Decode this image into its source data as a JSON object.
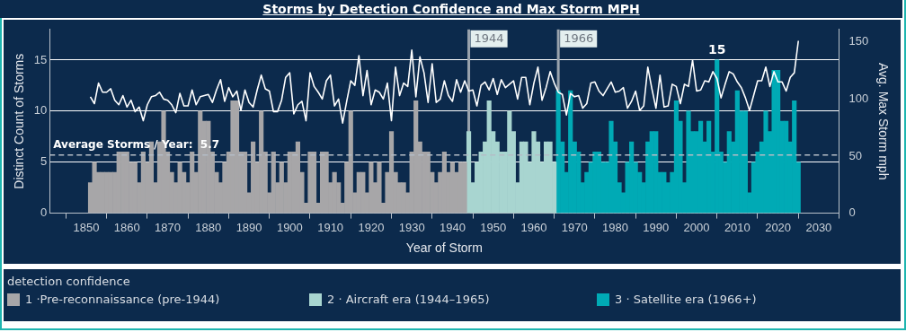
{
  "chart_data": {
    "type": "bar",
    "title": "Storms by Detection Confidence and Max Storm MPH",
    "xlabel": "Year of Storm",
    "ylabel": "Distinct Count of Storms",
    "y2label": "Avg. Max Storm mph",
    "legend_title": "detection confidence",
    "legend": "bottom",
    "grid": "y",
    "xlim": [
      1841,
      2035
    ],
    "xticks": [
      1850,
      1860,
      1870,
      1880,
      1890,
      1900,
      1910,
      1920,
      1930,
      1940,
      1950,
      1960,
      1970,
      1980,
      1990,
      2000,
      2010,
      2020,
      2030
    ],
    "ylim": [
      0,
      18
    ],
    "yticks": [
      0,
      5,
      10,
      15
    ],
    "y2lim": [
      0,
      161
    ],
    "y2ticks": [
      0,
      50,
      100,
      150
    ],
    "series": [
      {
        "name": "1 ·Pre-reconnaissance (pre-1944)",
        "color": "#a7a6a8",
        "x": [
          1851,
          1852,
          1853,
          1854,
          1855,
          1856,
          1857,
          1858,
          1859,
          1860,
          1861,
          1862,
          1863,
          1864,
          1865,
          1866,
          1867,
          1868,
          1869,
          1870,
          1871,
          1872,
          1873,
          1874,
          1875,
          1876,
          1877,
          1878,
          1879,
          1880,
          1881,
          1882,
          1883,
          1884,
          1885,
          1886,
          1887,
          1888,
          1889,
          1890,
          1891,
          1892,
          1893,
          1894,
          1895,
          1896,
          1897,
          1898,
          1899,
          1900,
          1901,
          1902,
          1903,
          1904,
          1905,
          1906,
          1907,
          1908,
          1909,
          1910,
          1911,
          1912,
          1913,
          1914,
          1915,
          1916,
          1917,
          1918,
          1919,
          1920,
          1921,
          1922,
          1923,
          1924,
          1925,
          1926,
          1927,
          1928,
          1929,
          1930,
          1931,
          1932,
          1933,
          1934,
          1935,
          1936,
          1937,
          1938,
          1939,
          1940,
          1941,
          1942,
          1943
        ],
        "values": [
          3,
          5,
          4,
          4,
          4,
          4,
          4,
          6,
          6,
          6,
          5,
          5,
          3,
          6,
          5,
          7,
          3,
          7,
          10,
          6,
          4,
          3,
          5,
          4,
          3,
          6,
          4,
          10,
          9,
          9,
          6,
          4,
          3,
          5,
          6,
          11,
          11,
          6,
          6,
          2,
          7,
          5,
          10,
          6,
          2,
          6,
          3,
          5,
          3,
          6,
          6,
          7,
          4,
          1,
          6,
          6,
          1,
          6,
          6,
          3,
          4,
          3,
          1,
          5,
          10,
          2,
          4,
          4,
          2,
          5,
          3,
          5,
          1,
          4,
          8,
          4,
          3,
          3,
          2,
          6,
          11,
          7,
          6,
          6,
          4,
          3,
          4,
          6,
          4,
          5,
          4,
          5,
          5
        ]
      },
      {
        "name": "2 · Aircraft era (1944–1965)",
        "color": "#a8d5d0",
        "x": [
          1944,
          1945,
          1946,
          1947,
          1948,
          1949,
          1950,
          1951,
          1952,
          1953,
          1954,
          1955,
          1956,
          1957,
          1958,
          1959,
          1960,
          1961,
          1962,
          1963,
          1964,
          1965
        ],
        "values": [
          8,
          3,
          5,
          6,
          7,
          11,
          8,
          7,
          6,
          6,
          10,
          8,
          3,
          7,
          7,
          5,
          8,
          7,
          5,
          7,
          7,
          5
        ]
      },
      {
        "name": "3 · Satellite era (1966+)",
        "color": "#00aab5",
        "x": [
          1966,
          1967,
          1968,
          1969,
          1970,
          1971,
          1972,
          1973,
          1974,
          1975,
          1976,
          1977,
          1978,
          1979,
          1980,
          1981,
          1982,
          1983,
          1984,
          1985,
          1986,
          1987,
          1988,
          1989,
          1990,
          1991,
          1992,
          1993,
          1994,
          1995,
          1996,
          1997,
          1998,
          1999,
          2000,
          2001,
          2002,
          2003,
          2004,
          2005,
          2006,
          2007,
          2008,
          2009,
          2010,
          2011,
          2012,
          2013,
          2014,
          2015,
          2016,
          2017,
          2018,
          2019,
          2020,
          2021,
          2022,
          2023,
          2024,
          2025
        ],
        "values": [
          12,
          7,
          4,
          12,
          7,
          6,
          3,
          4,
          5,
          6,
          6,
          5,
          5,
          9,
          7,
          3,
          2,
          5,
          7,
          5,
          4,
          3,
          7,
          8,
          8,
          4,
          4,
          3,
          4,
          11,
          9,
          3,
          10,
          8,
          8,
          9,
          7,
          9,
          6,
          15,
          6,
          5,
          8,
          7,
          12,
          10,
          10,
          2,
          5,
          6,
          7,
          10,
          8,
          14,
          14,
          9,
          9,
          7,
          11,
          5
        ],
        "value_labels": [
          null,
          null,
          null,
          null,
          null,
          null,
          null,
          null,
          null,
          null,
          null,
          null,
          null,
          null,
          null,
          null,
          null,
          null,
          null,
          null,
          null,
          null,
          null,
          null,
          null,
          null,
          null,
          null,
          null,
          null,
          null,
          null,
          null,
          null,
          null,
          null,
          null,
          null,
          null,
          "15",
          null,
          null,
          null,
          null,
          null,
          null,
          null,
          null,
          null,
          null,
          null,
          null,
          null,
          null,
          null,
          null,
          null,
          null,
          null,
          null
        ]
      },
      {
        "type": "line",
        "axis": "y2",
        "color": "#ffffff",
        "marker": "none",
        "line_style": "solid",
        "x": [
          1851,
          1852,
          1853,
          1854,
          1855,
          1856,
          1857,
          1858,
          1859,
          1860,
          1861,
          1862,
          1863,
          1864,
          1865,
          1866,
          1867,
          1868,
          1869,
          1870,
          1871,
          1872,
          1873,
          1874,
          1875,
          1876,
          1877,
          1878,
          1879,
          1880,
          1881,
          1882,
          1883,
          1884,
          1885,
          1886,
          1887,
          1888,
          1889,
          1890,
          1891,
          1892,
          1893,
          1894,
          1895,
          1896,
          1897,
          1898,
          1899,
          1900,
          1901,
          1902,
          1903,
          1904,
          1905,
          1906,
          1907,
          1908,
          1909,
          1910,
          1911,
          1912,
          1913,
          1914,
          1915,
          1916,
          1917,
          1918,
          1919,
          1920,
          1921,
          1922,
          1923,
          1924,
          1925,
          1926,
          1927,
          1928,
          1929,
          1930,
          1931,
          1932,
          1933,
          1934,
          1935,
          1936,
          1937,
          1938,
          1939,
          1940,
          1941,
          1942,
          1943,
          1944,
          1945,
          1946,
          1947,
          1948,
          1949,
          1950,
          1951,
          1952,
          1953,
          1954,
          1955,
          1956,
          1957,
          1958,
          1959,
          1960,
          1961,
          1962,
          1963,
          1964,
          1965,
          1966,
          1967,
          1968,
          1969,
          1970,
          1971,
          1972,
          1973,
          1974,
          1975,
          1976,
          1977,
          1978,
          1979,
          1980,
          1981,
          1982,
          1983,
          1984,
          1985,
          1986,
          1987,
          1988,
          1989,
          1990,
          1991,
          1992,
          1993,
          1994,
          1995,
          1996,
          1997,
          1998,
          1999,
          2000,
          2001,
          2002,
          2003,
          2004,
          2005,
          2006,
          2007,
          2008,
          2009,
          2010,
          2011,
          2012,
          2013,
          2014,
          2015,
          2016,
          2017,
          2018,
          2019,
          2020,
          2021,
          2022,
          2023,
          2024,
          2025
        ],
        "values": [
          102,
          96,
          114,
          106,
          106,
          109,
          99,
          95,
          103,
          93,
          99,
          89,
          93,
          81,
          95,
          102,
          103,
          106,
          100,
          99,
          95,
          88,
          105,
          94,
          94,
          108,
          95,
          102,
          103,
          104,
          97,
          108,
          117,
          98,
          110,
          102,
          107,
          90,
          108,
          97,
          93,
          108,
          121,
          109,
          107,
          89,
          89,
          99,
          119,
          123,
          87,
          95,
          98,
          81,
          123,
          111,
          106,
          100,
          116,
          121,
          94,
          100,
          79,
          98,
          116,
          112,
          138,
          103,
          125,
          95,
          108,
          106,
          100,
          114,
          81,
          128,
          103,
          114,
          111,
          143,
          102,
          137,
          123,
          97,
          131,
          97,
          100,
          116,
          103,
          98,
          117,
          106,
          116,
          107,
          108,
          94,
          112,
          115,
          108,
          118,
          104,
          117,
          110,
          113,
          116,
          100,
          119,
          119,
          95,
          114,
          128,
          99,
          110,
          124,
          114,
          106,
          104,
          86,
          105,
          102,
          103,
          92,
          96,
          114,
          115,
          107,
          103,
          109,
          115,
          106,
          107,
          110,
          92,
          98,
          107,
          90,
          94,
          128,
          109,
          92,
          121,
          93,
          94,
          113,
          111,
          96,
          113,
          111,
          134,
          107,
          108,
          116,
          115,
          124,
          118,
          101,
          113,
          124,
          122,
          115,
          110,
          101,
          90,
          103,
          116,
          116,
          128,
          111,
          124,
          115,
          115,
          107,
          119,
          123,
          151
        ]
      }
    ],
    "ref_lines": [
      {
        "axis": "y",
        "value": 5.7,
        "label": "Average Storms / Year:  5.7",
        "color": "#b4bcc6",
        "line_style": "dashed"
      },
      {
        "axis": "x",
        "value": 1944,
        "label": "1944",
        "color": "#9aa3ad",
        "line_style": "solid"
      },
      {
        "axis": "x",
        "value": 1966,
        "label": "1966",
        "color": "#9aa3ad",
        "line_style": "solid"
      }
    ]
  }
}
